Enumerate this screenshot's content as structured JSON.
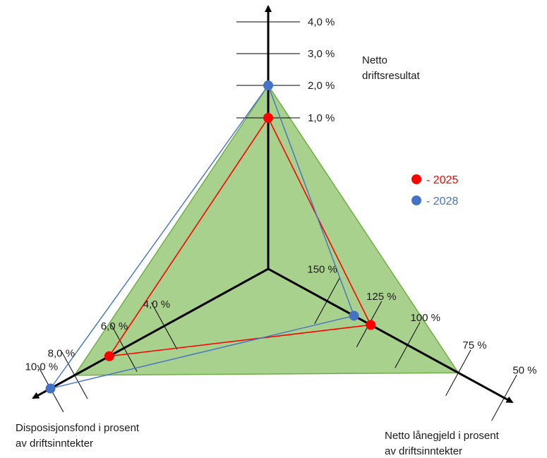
{
  "chart_data": {
    "type": "radar",
    "axes": [
      {
        "key": "top",
        "label_lines": [
          "Netto",
          "driftsresultat"
        ],
        "ticks": [
          "1,0 %",
          "2,0 %",
          "3,0 %",
          "4,0 %"
        ],
        "tick_values": [
          1.0,
          2.0,
          3.0,
          4.0
        ],
        "unit": "%"
      },
      {
        "key": "left",
        "label_lines": [
          "Disposisjonsfond i prosent",
          "av driftsinntekter"
        ],
        "ticks": [
          "4,0 %",
          "6,0 %",
          "8,0 %",
          "10,0 %"
        ],
        "tick_values": [
          4.0,
          6.0,
          8.0,
          10.0
        ],
        "unit": "%"
      },
      {
        "key": "right",
        "label_lines": [
          "Netto lånegjeld i prosent",
          "av driftsinntekter"
        ],
        "ticks": [
          "150 %",
          "125 %",
          "100 %",
          "75 %",
          "50 %"
        ],
        "tick_values": [
          150,
          125,
          100,
          75,
          50
        ],
        "unit": "%",
        "reversed": true
      }
    ],
    "target_area": {
      "color": "#a9d18e",
      "border": "#70ad47",
      "values": {
        "top": 2.0,
        "left": 8.0,
        "right": 75
      }
    },
    "series": [
      {
        "name": "2025",
        "color": "#ff0000",
        "values": {
          "top": 1.0,
          "left": 6.6,
          "right": 124
        }
      },
      {
        "name": "2028",
        "color": "#4472c4",
        "values": {
          "top": 2.0,
          "left": 10.0,
          "right": 134
        }
      }
    ],
    "legend": {
      "position": "right",
      "items": [
        {
          "series": "2025",
          "text": "- 2025",
          "color": "#ff0000"
        },
        {
          "series": "2028",
          "text": "- 2028",
          "color": "#4472c4"
        }
      ]
    }
  }
}
